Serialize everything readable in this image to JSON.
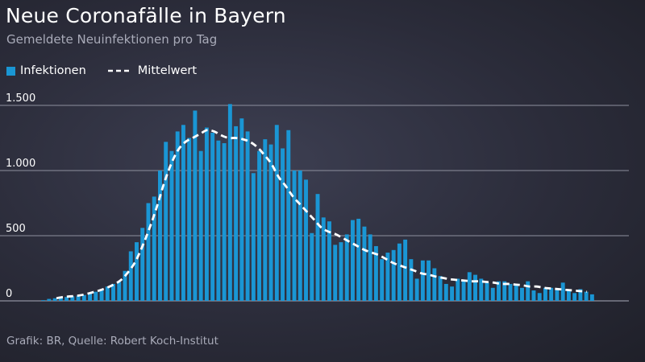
{
  "title": "Neue Coronafälle in Bayern",
  "subtitle": "Gemeldete Neuinfektionen pro Tag",
  "source": "Grafik: BR, Quelle: Robert Koch-Institut",
  "legend": {
    "bars_label": "Infektionen",
    "line_label": "Mittelwert"
  },
  "colors": {
    "bar": "#1a96d4",
    "line": "#ffffff",
    "grid": "#8e909e",
    "tick_text": "#ffffff"
  },
  "chart_data": {
    "type": "bar",
    "ylim": [
      0,
      1500
    ],
    "yticks": [
      {
        "value": 0,
        "label": "0"
      },
      {
        "value": 500,
        "label": "500"
      },
      {
        "value": 1000,
        "label": "1.000"
      },
      {
        "value": 1500,
        "label": "1.500"
      }
    ],
    "grid": true,
    "legend_position": "top-left",
    "series": [
      {
        "name": "Infektionen",
        "kind": "bar",
        "values": [
          5,
          15,
          20,
          25,
          30,
          35,
          40,
          45,
          55,
          70,
          90,
          110,
          130,
          145,
          230,
          380,
          450,
          560,
          750,
          800,
          1000,
          1220,
          1150,
          1300,
          1350,
          1250,
          1460,
          1150,
          1330,
          1290,
          1230,
          1210,
          1510,
          1340,
          1400,
          1300,
          980,
          1150,
          1240,
          1200,
          1350,
          1170,
          1310,
          1000,
          1000,
          930,
          520,
          820,
          640,
          610,
          430,
          450,
          510,
          620,
          630,
          570,
          510,
          420,
          320,
          370,
          390,
          440,
          470,
          320,
          170,
          310,
          310,
          250,
          190,
          130,
          110,
          170,
          160,
          220,
          200,
          170,
          140,
          100,
          150,
          150,
          130,
          130,
          100,
          150,
          80,
          60,
          100,
          100,
          90,
          140,
          80,
          60,
          90,
          70,
          50
        ],
        "x_range_note": "bars span the full chart width from left to right"
      },
      {
        "name": "Mittelwert",
        "kind": "line",
        "style": "dashed",
        "values": [
          20,
          30,
          35,
          40,
          50,
          65,
          80,
          100,
          125,
          160,
          220,
          300,
          420,
          560,
          720,
          900,
          1050,
          1160,
          1220,
          1250,
          1280,
          1310,
          1300,
          1270,
          1250,
          1250,
          1240,
          1220,
          1180,
          1120,
          1050,
          950,
          880,
          800,
          740,
          680,
          620,
          560,
          530,
          510,
          480,
          450,
          420,
          390,
          370,
          350,
          320,
          290,
          270,
          250,
          230,
          210,
          200,
          185,
          175,
          165,
          160,
          155,
          150,
          150,
          145,
          140,
          130,
          130,
          125,
          120,
          110,
          110,
          100,
          95,
          90,
          85,
          80,
          75,
          70
        ]
      }
    ]
  }
}
